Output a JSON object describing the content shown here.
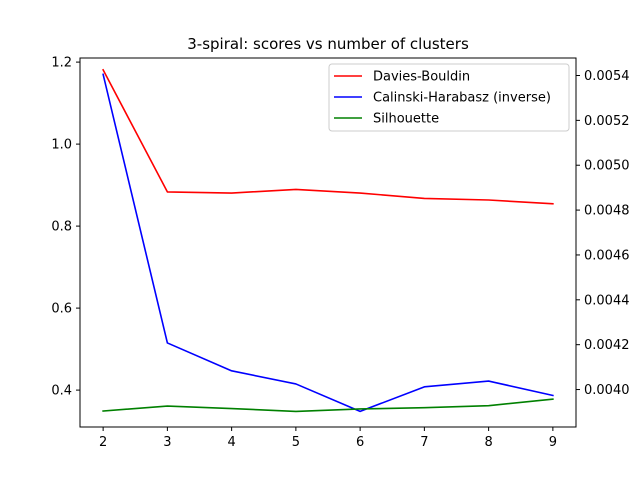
{
  "chart_data": {
    "type": "line",
    "title": "3-spiral: scores vs number of clusters",
    "xlabel": "",
    "ylabel": "",
    "x": [
      2,
      3,
      4,
      5,
      6,
      7,
      8,
      9
    ],
    "xticks": [
      "2",
      "3",
      "4",
      "5",
      "6",
      "7",
      "8",
      "9"
    ],
    "xlim": [
      1.64,
      9.36
    ],
    "left_axis": {
      "ylim": [
        0.31,
        1.21
      ],
      "ticks": [
        0.4,
        0.6,
        0.8,
        1.0,
        1.2
      ],
      "tick_labels": [
        "0.4",
        "0.6",
        "0.8",
        "1.0",
        "1.2"
      ]
    },
    "right_axis": {
      "ylim": [
        0.003833,
        0.005478
      ],
      "ticks": [
        0.004,
        0.0042,
        0.0044,
        0.0046,
        0.0048,
        0.005,
        0.0052,
        0.0054
      ],
      "tick_labels": [
        "0.0040",
        "0.0042",
        "0.0044",
        "0.0046",
        "0.0048",
        "0.0050",
        "0.0052",
        "0.0054"
      ]
    },
    "legend_position": "top-right",
    "grid": false,
    "series": [
      {
        "name": "Davies-Bouldin",
        "axis": "right",
        "color": "#ff0000",
        "values": [
          0.005425,
          0.004881,
          0.004876,
          0.004892,
          0.004876,
          0.004852,
          0.004845,
          0.004828
        ]
      },
      {
        "name": "Calinski-Harabasz (inverse)",
        "axis": "left",
        "color": "#0000ff",
        "values": [
          1.17,
          0.515,
          0.447,
          0.415,
          0.348,
          0.408,
          0.422,
          0.387
        ]
      },
      {
        "name": "Silhouette",
        "axis": "left",
        "color": "#008000",
        "values": [
          0.349,
          0.361,
          0.355,
          0.348,
          0.354,
          0.357,
          0.362,
          0.378
        ]
      }
    ]
  }
}
